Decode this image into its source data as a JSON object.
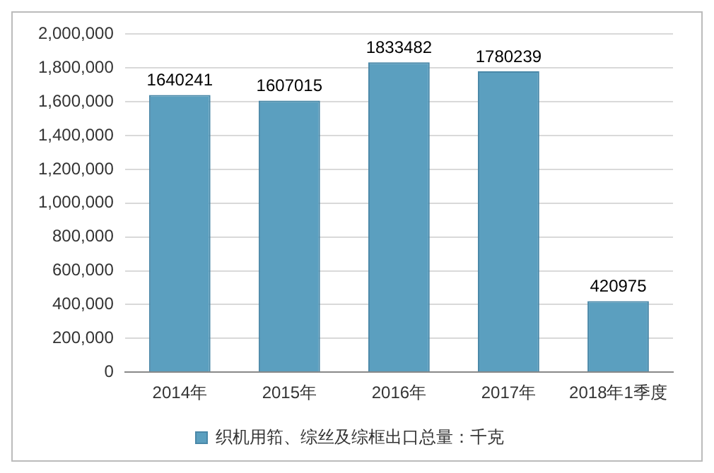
{
  "chart_data": {
    "type": "bar",
    "categories": [
      "2014年",
      "2015年",
      "2016年",
      "2017年",
      "2018年1季度"
    ],
    "series": [
      {
        "name": "织机用筘、综丝及综框出口总量：千克",
        "color": "#5b9fbf",
        "values": [
          1640241,
          1607015,
          1833482,
          1780239,
          420975
        ]
      }
    ],
    "ylim": [
      0,
      2000000
    ],
    "yticks": [
      0,
      {
        "value": 200000,
        "label": "200,000"
      },
      {
        "value": 400000,
        "label": "400,000"
      },
      {
        "value": 600000,
        "label": "600,000"
      },
      {
        "value": 800000,
        "label": "800,000"
      },
      {
        "value": 1000000,
        "label": "1,000,000"
      },
      {
        "value": 1200000,
        "label": "1,200,000"
      },
      {
        "value": 1400000,
        "label": "1,400,000"
      },
      {
        "value": 1600000,
        "label": "1,600,000"
      },
      {
        "value": 1800000,
        "label": "1,800,000"
      },
      {
        "value": 2000000,
        "label": "2,000,000"
      }
    ],
    "grid": "y",
    "legend": "bottom",
    "data_labels": true
  }
}
